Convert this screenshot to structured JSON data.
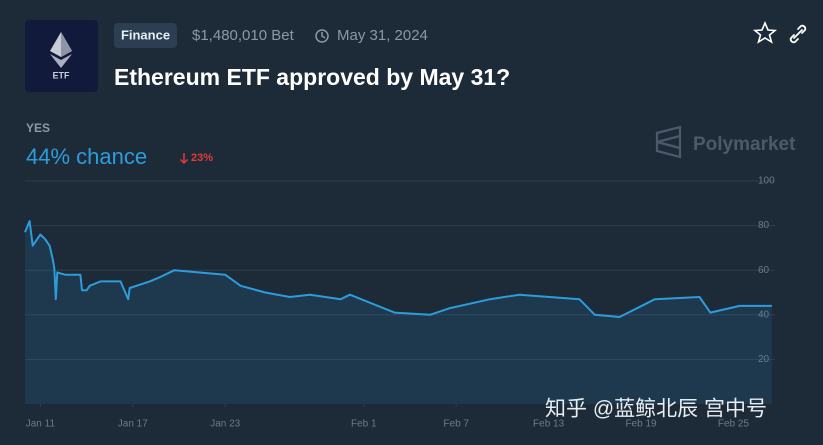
{
  "header": {
    "icon_label": "ETF",
    "category": "Finance",
    "volume": "$1,480,010 Bet",
    "end_date": "May 31, 2024",
    "title": "Ethereum ETF approved by May 31?"
  },
  "outcome": {
    "label": "YES",
    "chance": "44% chance",
    "change": "23%"
  },
  "watermark": "Polymarket",
  "credit": "知乎 @蓝鲸北辰 宫中号",
  "chart_data": {
    "type": "line",
    "x": [
      10.0,
      10.3,
      10.5,
      11.0,
      11.3,
      11.6,
      11.8,
      11.9,
      12.0,
      12.1,
      12.6,
      13.6,
      13.7,
      14.0,
      14.2,
      14.9,
      16.2,
      16.7,
      16.8,
      18.1,
      18.8,
      19.7,
      23.0,
      24.0,
      25.6,
      27.2,
      28.5,
      30.5,
      31.1,
      34.0,
      36.3,
      37.6,
      40.2,
      42.1,
      46.0,
      47.0,
      48.6,
      50.9,
      53.8,
      54.5,
      56.4,
      58.5
    ],
    "values": [
      77,
      82,
      71,
      76,
      74,
      71,
      65,
      61,
      47,
      59,
      58,
      58,
      51,
      51,
      53,
      55,
      55,
      47,
      52,
      55,
      57,
      60,
      58,
      53,
      50,
      48,
      49,
      47,
      49,
      41,
      40,
      43,
      47,
      49,
      47,
      40,
      39,
      47,
      48,
      41,
      44,
      44
    ],
    "color": "#2d9cdb",
    "xlim": [
      10.0,
      58.7
    ],
    "ylim": [
      0,
      100
    ],
    "xticks": [
      {
        "value": 11,
        "label": "Jan 11"
      },
      {
        "value": 17,
        "label": "Jan 17"
      },
      {
        "value": 23,
        "label": "Jan 23"
      },
      {
        "value": 32,
        "label": "Feb 1"
      },
      {
        "value": 38,
        "label": "Feb 7"
      },
      {
        "value": 44,
        "label": "Feb 13"
      },
      {
        "value": 50,
        "label": "Feb 19"
      },
      {
        "value": 56,
        "label": "Feb 25"
      }
    ],
    "yticks": [
      20,
      40,
      60,
      80,
      100
    ],
    "grid": true
  }
}
